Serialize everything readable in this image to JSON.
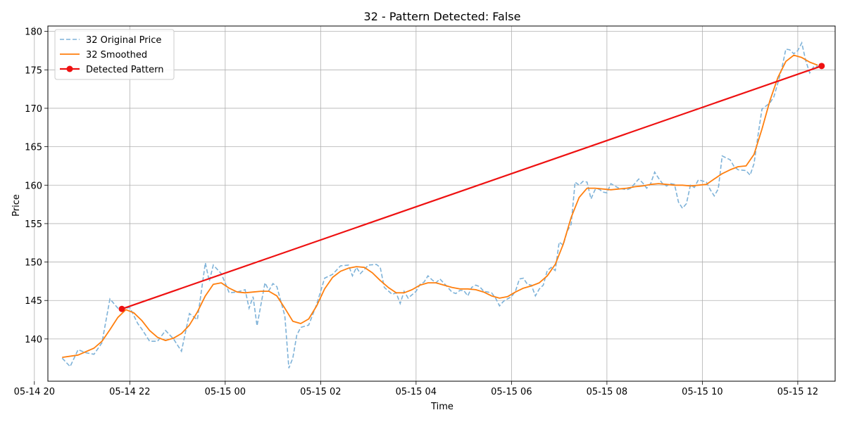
{
  "chart_data": {
    "type": "line",
    "title": "32 - Pattern Detected: False",
    "xlabel": "Time",
    "ylabel": "Price",
    "xlim": [
      "2025-05-14 20:17",
      "2025-05-15 12:47"
    ],
    "ylim": [
      134.5,
      180.7
    ],
    "grid": true,
    "legend_position": "top-left",
    "x_ticks": [
      "05-14 20",
      "05-14 22",
      "05-15 00",
      "05-15 02",
      "05-15 04",
      "05-15 06",
      "05-15 08",
      "05-15 10",
      "05-15 12"
    ],
    "y_ticks": [
      140,
      145,
      150,
      155,
      160,
      165,
      170,
      175,
      180
    ],
    "series": [
      {
        "name": "32 Original Price",
        "style": "dashed",
        "color": "#7eb2d8",
        "points": [
          [
            "2025-05-14 20:35",
            137.5
          ],
          [
            "2025-05-14 20:45",
            136.4
          ],
          [
            "2025-05-14 20:55",
            138.6
          ],
          [
            "2025-05-14 21:05",
            138.2
          ],
          [
            "2025-05-14 21:15",
            138.0
          ],
          [
            "2025-05-14 21:25",
            139.5
          ],
          [
            "2025-05-14 21:35",
            145.2
          ],
          [
            "2025-05-14 21:45",
            144.0
          ],
          [
            "2025-05-14 21:50",
            143.9
          ],
          [
            "2025-05-14 22:00",
            144.1
          ],
          [
            "2025-05-14 22:10",
            142.0
          ],
          [
            "2025-05-14 22:15",
            141.3
          ],
          [
            "2025-05-14 22:25",
            139.7
          ],
          [
            "2025-05-14 22:35",
            139.7
          ],
          [
            "2025-05-14 22:45",
            141.1
          ],
          [
            "2025-05-14 22:55",
            140.0
          ],
          [
            "2025-05-14 23:05",
            138.4
          ],
          [
            "2025-05-14 23:15",
            143.3
          ],
          [
            "2025-05-14 23:25",
            142.5
          ],
          [
            "2025-05-14 23:35",
            149.9
          ],
          [
            "2025-05-14 23:40",
            147.5
          ],
          [
            "2025-05-14 23:45",
            149.6
          ],
          [
            "2025-05-14 23:55",
            148.5
          ],
          [
            "2025-05-15 00:05",
            146.0
          ],
          [
            "2025-05-15 00:15",
            146.1
          ],
          [
            "2025-05-15 00:25",
            146.4
          ],
          [
            "2025-05-15 00:30",
            144.0
          ],
          [
            "2025-05-15 00:35",
            145.5
          ],
          [
            "2025-05-15 00:40",
            141.7
          ],
          [
            "2025-05-15 00:50",
            147.3
          ],
          [
            "2025-05-15 00:55",
            146.3
          ],
          [
            "2025-05-15 01:00",
            147.2
          ],
          [
            "2025-05-15 01:05",
            146.8
          ],
          [
            "2025-05-15 01:15",
            143.0
          ],
          [
            "2025-05-15 01:20",
            136.2
          ],
          [
            "2025-05-15 01:25",
            137.5
          ],
          [
            "2025-05-15 01:30",
            140.5
          ],
          [
            "2025-05-15 01:35",
            141.5
          ],
          [
            "2025-05-15 01:45",
            141.8
          ],
          [
            "2025-05-15 01:55",
            144.5
          ],
          [
            "2025-05-15 02:05",
            147.9
          ],
          [
            "2025-05-15 02:15",
            148.4
          ],
          [
            "2025-05-15 02:25",
            149.5
          ],
          [
            "2025-05-15 02:35",
            149.6
          ],
          [
            "2025-05-15 02:40",
            148.2
          ],
          [
            "2025-05-15 02:45",
            149.3
          ],
          [
            "2025-05-15 02:50",
            148.5
          ],
          [
            "2025-05-15 03:00",
            149.6
          ],
          [
            "2025-05-15 03:10",
            149.7
          ],
          [
            "2025-05-15 03:15",
            149.3
          ],
          [
            "2025-05-15 03:20",
            146.7
          ],
          [
            "2025-05-15 03:30",
            145.8
          ],
          [
            "2025-05-15 03:35",
            146.0
          ],
          [
            "2025-05-15 03:40",
            144.6
          ],
          [
            "2025-05-15 03:45",
            146.2
          ],
          [
            "2025-05-15 03:50",
            145.3
          ],
          [
            "2025-05-15 04:00",
            146.2
          ],
          [
            "2025-05-15 04:05",
            147.1
          ],
          [
            "2025-05-15 04:10",
            147.4
          ],
          [
            "2025-05-15 04:15",
            148.2
          ],
          [
            "2025-05-15 04:20",
            147.7
          ],
          [
            "2025-05-15 04:25",
            147.3
          ],
          [
            "2025-05-15 04:30",
            147.8
          ],
          [
            "2025-05-15 04:40",
            146.7
          ],
          [
            "2025-05-15 04:45",
            146.1
          ],
          [
            "2025-05-15 04:50",
            145.9
          ],
          [
            "2025-05-15 04:55",
            146.3
          ],
          [
            "2025-05-15 05:00",
            146.3
          ],
          [
            "2025-05-15 05:05",
            145.6
          ],
          [
            "2025-05-15 05:10",
            146.7
          ],
          [
            "2025-05-15 05:15",
            147.0
          ],
          [
            "2025-05-15 05:20",
            146.8
          ],
          [
            "2025-05-15 05:25",
            146.2
          ],
          [
            "2025-05-15 05:35",
            146.0
          ],
          [
            "2025-05-15 05:40",
            145.3
          ],
          [
            "2025-05-15 05:45",
            144.3
          ],
          [
            "2025-05-15 05:50",
            144.9
          ],
          [
            "2025-05-15 05:55",
            145.2
          ],
          [
            "2025-05-15 06:00",
            145.5
          ],
          [
            "2025-05-15 06:05",
            146.2
          ],
          [
            "2025-05-15 06:10",
            147.8
          ],
          [
            "2025-05-15 06:15",
            147.9
          ],
          [
            "2025-05-15 06:20",
            147.1
          ],
          [
            "2025-05-15 06:25",
            147.0
          ],
          [
            "2025-05-15 06:30",
            145.6
          ],
          [
            "2025-05-15 06:35",
            146.5
          ],
          [
            "2025-05-15 06:40",
            147.0
          ],
          [
            "2025-05-15 06:45",
            148.9
          ],
          [
            "2025-05-15 06:50",
            149.3
          ],
          [
            "2025-05-15 06:55",
            148.9
          ],
          [
            "2025-05-15 07:00",
            152.6
          ],
          [
            "2025-05-15 07:05",
            152.2
          ],
          [
            "2025-05-15 07:10",
            154.0
          ],
          [
            "2025-05-15 07:15",
            154.9
          ],
          [
            "2025-05-15 07:20",
            160.4
          ],
          [
            "2025-05-15 07:25",
            160.0
          ],
          [
            "2025-05-15 07:30",
            160.5
          ],
          [
            "2025-05-15 07:35",
            160.4
          ],
          [
            "2025-05-15 07:40",
            158.2
          ],
          [
            "2025-05-15 07:45",
            159.4
          ],
          [
            "2025-05-15 07:50",
            159.5
          ],
          [
            "2025-05-15 07:55",
            159.1
          ],
          [
            "2025-05-15 08:00",
            159.0
          ],
          [
            "2025-05-15 08:05",
            160.2
          ],
          [
            "2025-05-15 08:15",
            159.6
          ],
          [
            "2025-05-15 08:25",
            159.4
          ],
          [
            "2025-05-15 08:30",
            159.6
          ],
          [
            "2025-05-15 08:40",
            160.8
          ],
          [
            "2025-05-15 08:45",
            160.3
          ],
          [
            "2025-05-15 08:50",
            159.6
          ],
          [
            "2025-05-15 08:55",
            160.2
          ],
          [
            "2025-05-15 09:00",
            161.7
          ],
          [
            "2025-05-15 09:05",
            160.9
          ],
          [
            "2025-05-15 09:10",
            160.2
          ],
          [
            "2025-05-15 09:15",
            159.9
          ],
          [
            "2025-05-15 09:20",
            160.2
          ],
          [
            "2025-05-15 09:25",
            160.1
          ],
          [
            "2025-05-15 09:30",
            157.8
          ],
          [
            "2025-05-15 09:35",
            157.0
          ],
          [
            "2025-05-15 09:40",
            157.6
          ],
          [
            "2025-05-15 09:45",
            160.0
          ],
          [
            "2025-05-15 09:50",
            159.7
          ],
          [
            "2025-05-15 09:55",
            160.7
          ],
          [
            "2025-05-15 10:05",
            160.4
          ],
          [
            "2025-05-15 10:10",
            159.4
          ],
          [
            "2025-05-15 10:15",
            158.6
          ],
          [
            "2025-05-15 10:20",
            159.5
          ],
          [
            "2025-05-15 10:25",
            163.8
          ],
          [
            "2025-05-15 10:35",
            163.3
          ],
          [
            "2025-05-15 10:40",
            162.4
          ],
          [
            "2025-05-15 10:45",
            162.0
          ],
          [
            "2025-05-15 10:55",
            161.9
          ],
          [
            "2025-05-15 11:00",
            161.3
          ],
          [
            "2025-05-15 11:05",
            162.8
          ],
          [
            "2025-05-15 11:10",
            166.5
          ],
          [
            "2025-05-15 11:15",
            169.9
          ],
          [
            "2025-05-15 11:20",
            170.3
          ],
          [
            "2025-05-15 11:25",
            170.7
          ],
          [
            "2025-05-15 11:30",
            171.5
          ],
          [
            "2025-05-15 11:35",
            173.3
          ],
          [
            "2025-05-15 11:40",
            175.2
          ],
          [
            "2025-05-15 11:45",
            177.7
          ],
          [
            "2025-05-15 11:50",
            177.6
          ],
          [
            "2025-05-15 11:55",
            177.1
          ],
          [
            "2025-05-15 12:00",
            177.5
          ],
          [
            "2025-05-15 12:05",
            178.5
          ],
          [
            "2025-05-15 12:10",
            176.2
          ],
          [
            "2025-05-15 12:15",
            174.6
          ],
          [
            "2025-05-15 12:20",
            175.4
          ],
          [
            "2025-05-15 12:30",
            175.5
          ]
        ]
      },
      {
        "name": "32 Smoothed",
        "style": "solid",
        "color": "#ff7f0e",
        "points": [
          [
            "2025-05-14 20:35",
            137.6
          ],
          [
            "2025-05-14 20:55",
            137.9
          ],
          [
            "2025-05-14 21:15",
            138.8
          ],
          [
            "2025-05-14 21:25",
            139.7
          ],
          [
            "2025-05-14 21:35",
            141.2
          ],
          [
            "2025-05-14 21:45",
            142.8
          ],
          [
            "2025-05-14 21:55",
            143.8
          ],
          [
            "2025-05-14 22:05",
            143.4
          ],
          [
            "2025-05-14 22:15",
            142.4
          ],
          [
            "2025-05-14 22:25",
            141.1
          ],
          [
            "2025-05-14 22:35",
            140.2
          ],
          [
            "2025-05-14 22:45",
            139.8
          ],
          [
            "2025-05-14 22:55",
            140.1
          ],
          [
            "2025-05-14 23:05",
            140.7
          ],
          [
            "2025-05-14 23:15",
            141.8
          ],
          [
            "2025-05-14 23:25",
            143.5
          ],
          [
            "2025-05-14 23:35",
            145.6
          ],
          [
            "2025-05-14 23:45",
            147.1
          ],
          [
            "2025-05-14 23:55",
            147.3
          ],
          [
            "2025-05-15 00:05",
            146.6
          ],
          [
            "2025-05-15 00:15",
            146.1
          ],
          [
            "2025-05-15 00:25",
            146.0
          ],
          [
            "2025-05-15 00:35",
            146.1
          ],
          [
            "2025-05-15 00:45",
            146.2
          ],
          [
            "2025-05-15 00:55",
            146.2
          ],
          [
            "2025-05-15 01:05",
            145.6
          ],
          [
            "2025-05-15 01:15",
            144.0
          ],
          [
            "2025-05-15 01:25",
            142.3
          ],
          [
            "2025-05-15 01:35",
            142.0
          ],
          [
            "2025-05-15 01:45",
            142.6
          ],
          [
            "2025-05-15 01:55",
            144.3
          ],
          [
            "2025-05-15 02:05",
            146.5
          ],
          [
            "2025-05-15 02:15",
            148.0
          ],
          [
            "2025-05-15 02:25",
            148.8
          ],
          [
            "2025-05-15 02:35",
            149.2
          ],
          [
            "2025-05-15 02:45",
            149.4
          ],
          [
            "2025-05-15 02:55",
            149.3
          ],
          [
            "2025-05-15 03:05",
            148.6
          ],
          [
            "2025-05-15 03:15",
            147.6
          ],
          [
            "2025-05-15 03:25",
            146.7
          ],
          [
            "2025-05-15 03:35",
            146.0
          ],
          [
            "2025-05-15 03:45",
            146.0
          ],
          [
            "2025-05-15 03:55",
            146.4
          ],
          [
            "2025-05-15 04:05",
            147.0
          ],
          [
            "2025-05-15 04:15",
            147.3
          ],
          [
            "2025-05-15 04:25",
            147.3
          ],
          [
            "2025-05-15 04:35",
            147.0
          ],
          [
            "2025-05-15 04:45",
            146.7
          ],
          [
            "2025-05-15 04:55",
            146.5
          ],
          [
            "2025-05-15 05:05",
            146.5
          ],
          [
            "2025-05-15 05:15",
            146.4
          ],
          [
            "2025-05-15 05:25",
            146.1
          ],
          [
            "2025-05-15 05:35",
            145.6
          ],
          [
            "2025-05-15 05:45",
            145.3
          ],
          [
            "2025-05-15 05:55",
            145.5
          ],
          [
            "2025-05-15 06:05",
            146.1
          ],
          [
            "2025-05-15 06:15",
            146.6
          ],
          [
            "2025-05-15 06:25",
            146.9
          ],
          [
            "2025-05-15 06:35",
            147.3
          ],
          [
            "2025-05-15 06:45",
            148.2
          ],
          [
            "2025-05-15 06:55",
            149.7
          ],
          [
            "2025-05-15 07:05",
            152.3
          ],
          [
            "2025-05-15 07:15",
            155.8
          ],
          [
            "2025-05-15 07:25",
            158.4
          ],
          [
            "2025-05-15 07:35",
            159.6
          ],
          [
            "2025-05-15 07:45",
            159.6
          ],
          [
            "2025-05-15 07:55",
            159.5
          ],
          [
            "2025-05-15 08:05",
            159.4
          ],
          [
            "2025-05-15 08:15",
            159.5
          ],
          [
            "2025-05-15 08:25",
            159.6
          ],
          [
            "2025-05-15 08:35",
            159.8
          ],
          [
            "2025-05-15 08:45",
            159.9
          ],
          [
            "2025-05-15 08:55",
            160.1
          ],
          [
            "2025-05-15 09:05",
            160.2
          ],
          [
            "2025-05-15 09:15",
            160.1
          ],
          [
            "2025-05-15 09:25",
            160.0
          ],
          [
            "2025-05-15 09:35",
            160.0
          ],
          [
            "2025-05-15 09:45",
            159.9
          ],
          [
            "2025-05-15 09:55",
            160.0
          ],
          [
            "2025-05-15 10:05",
            160.1
          ],
          [
            "2025-05-15 10:15",
            160.8
          ],
          [
            "2025-05-15 10:25",
            161.5
          ],
          [
            "2025-05-15 10:35",
            162.0
          ],
          [
            "2025-05-15 10:45",
            162.4
          ],
          [
            "2025-05-15 10:55",
            162.5
          ],
          [
            "2025-05-15 11:05",
            164.0
          ],
          [
            "2025-05-15 11:15",
            167.3
          ],
          [
            "2025-05-15 11:25",
            171.0
          ],
          [
            "2025-05-15 11:35",
            174.0
          ],
          [
            "2025-05-15 11:45",
            176.1
          ],
          [
            "2025-05-15 11:55",
            176.9
          ],
          [
            "2025-05-15 12:05",
            176.6
          ],
          [
            "2025-05-15 12:15",
            176.0
          ],
          [
            "2025-05-15 12:25",
            175.6
          ]
        ]
      },
      {
        "name": "Detected Pattern",
        "style": "solid-markers",
        "color": "#ee1111",
        "points": [
          [
            "2025-05-14 21:50",
            143.9
          ],
          [
            "2025-05-15 12:30",
            175.5
          ]
        ]
      }
    ]
  }
}
